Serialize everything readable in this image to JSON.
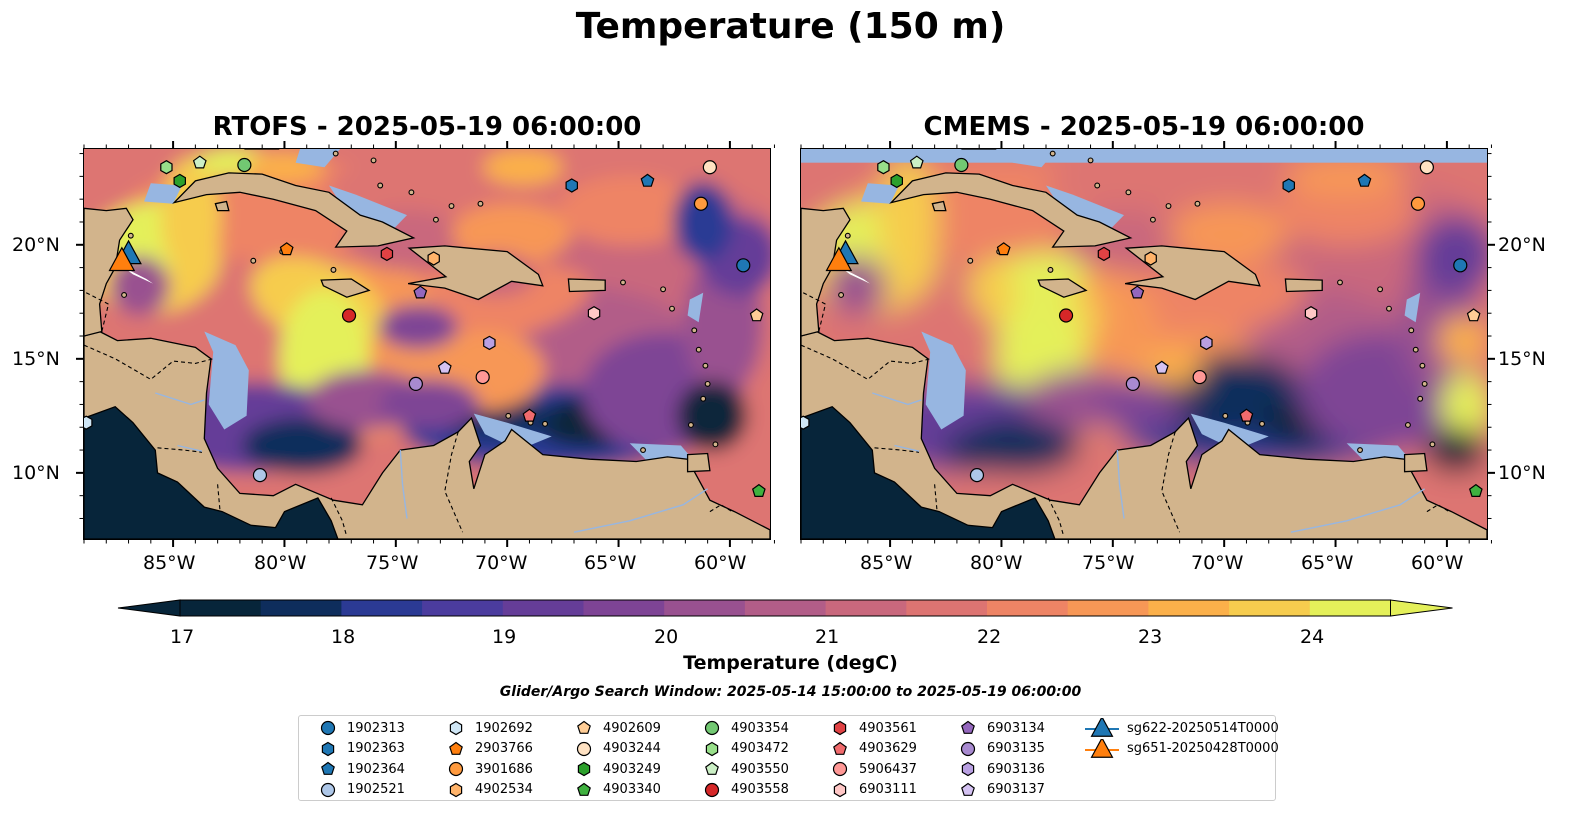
{
  "title": "Temperature (150 m)",
  "panels": [
    {
      "title": "RTOFS - 2025-05-19 06:00:00"
    },
    {
      "title": "CMEMS - 2025-05-19 06:00:00"
    }
  ],
  "axes": {
    "lon_labels": [
      "85°W",
      "80°W",
      "75°W",
      "70°W",
      "65°W",
      "60°W"
    ],
    "lat_labels": [
      "20°N",
      "15°N",
      "10°N"
    ]
  },
  "colorbar": {
    "label": "Temperature (degC)",
    "ticks": [
      "17",
      "18",
      "19",
      "20",
      "21",
      "22",
      "23",
      "24"
    ],
    "colors": [
      "#07253a",
      "#0e2d5c",
      "#2b3a94",
      "#4b3c9e",
      "#653d98",
      "#7e4495",
      "#995190",
      "#b25d88",
      "#c9687d",
      "#dd7472",
      "#ee8465",
      "#f79756",
      "#fbb04a",
      "#f6cc4e",
      "#e4f05a"
    ],
    "land_color": "#d2b48c",
    "below_range_color": "#97b6e1"
  },
  "search_window": "Glider/Argo Search Window: 2025-05-14 15:00:00 to 2025-05-19 06:00:00",
  "legend": {
    "items": [
      {
        "label": "1902313",
        "marker": "circle",
        "color": "#1f77b4"
      },
      {
        "label": "1902363",
        "marker": "hexagon",
        "color": "#1f77b4"
      },
      {
        "label": "1902364",
        "marker": "pentagon",
        "color": "#1f77b4"
      },
      {
        "label": "1902521",
        "marker": "circle",
        "color": "#aec7e8"
      },
      {
        "label": "1902692",
        "marker": "hexagon",
        "color": "#cfe6f5"
      },
      {
        "label": "2903766",
        "marker": "pentagon",
        "color": "#ff7f0e"
      },
      {
        "label": "3901686",
        "marker": "circle",
        "color": "#ff9a3e"
      },
      {
        "label": "4902534",
        "marker": "hexagon",
        "color": "#ffb36a"
      },
      {
        "label": "4902609",
        "marker": "pentagon",
        "color": "#ffcd96"
      },
      {
        "label": "4903244",
        "marker": "circle",
        "color": "#ffe2c3"
      },
      {
        "label": "4903249",
        "marker": "hexagon",
        "color": "#2ca02c"
      },
      {
        "label": "4903340",
        "marker": "pentagon",
        "color": "#3fb13f"
      },
      {
        "label": "4903354",
        "marker": "circle",
        "color": "#72c872"
      },
      {
        "label": "4903472",
        "marker": "hexagon",
        "color": "#98df8a"
      },
      {
        "label": "4903550",
        "marker": "pentagon",
        "color": "#cbefc5"
      },
      {
        "label": "4903558",
        "marker": "circle",
        "color": "#d62728"
      },
      {
        "label": "4903561",
        "marker": "hexagon",
        "color": "#e04244"
      },
      {
        "label": "4903629",
        "marker": "pentagon",
        "color": "#f16b6d"
      },
      {
        "label": "5906437",
        "marker": "circle",
        "color": "#ff9896"
      },
      {
        "label": "6903111",
        "marker": "hexagon",
        "color": "#ffc7c6"
      },
      {
        "label": "6903134",
        "marker": "pentagon",
        "color": "#9467bd"
      },
      {
        "label": "6903135",
        "marker": "circle",
        "color": "#a88ad0"
      },
      {
        "label": "6903136",
        "marker": "hexagon",
        "color": "#b9a0e2"
      },
      {
        "label": "6903137",
        "marker": "pentagon",
        "color": "#d4c2f2"
      },
      {
        "label": "sg622-20250514T0000",
        "marker": "triangle",
        "color": "#1f77b4"
      },
      {
        "label": "sg651-20250428T0000",
        "marker": "triangle",
        "color": "#ff7f0e"
      }
    ]
  },
  "platforms": [
    {
      "id": "1902313",
      "lon": -59.4,
      "lat": 19.1,
      "marker": "circle",
      "color": "#1f77b4"
    },
    {
      "id": "1902363",
      "lon": -67.1,
      "lat": 22.6,
      "marker": "hexagon",
      "color": "#1f77b4"
    },
    {
      "id": "1902364",
      "lon": -63.7,
      "lat": 22.8,
      "marker": "pentagon",
      "color": "#1f77b4"
    },
    {
      "id": "1902521",
      "lon": -81.1,
      "lat": 9.9,
      "marker": "circle",
      "color": "#aec7e8"
    },
    {
      "id": "1902692",
      "lon": -88.9,
      "lat": 12.2,
      "marker": "hexagon",
      "color": "#cfe6f5"
    },
    {
      "id": "2903766",
      "lon": -79.9,
      "lat": 19.8,
      "marker": "pentagon",
      "color": "#ff7f0e"
    },
    {
      "id": "3901686",
      "lon": -61.3,
      "lat": 21.8,
      "marker": "circle",
      "color": "#ff9a3e"
    },
    {
      "id": "4902534",
      "lon": -73.3,
      "lat": 19.4,
      "marker": "hexagon",
      "color": "#ffb36a"
    },
    {
      "id": "4902609",
      "lon": -58.8,
      "lat": 16.9,
      "marker": "pentagon",
      "color": "#ffcd96"
    },
    {
      "id": "4903244",
      "lon": -60.9,
      "lat": 23.4,
      "marker": "circle",
      "color": "#ffe2c3"
    },
    {
      "id": "4903249",
      "lon": -84.7,
      "lat": 22.8,
      "marker": "hexagon",
      "color": "#2ca02c"
    },
    {
      "id": "4903340",
      "lon": -58.7,
      "lat": 9.2,
      "marker": "pentagon",
      "color": "#3fb13f"
    },
    {
      "id": "4903354",
      "lon": -81.8,
      "lat": 23.5,
      "marker": "circle",
      "color": "#72c872"
    },
    {
      "id": "4903472",
      "lon": -85.3,
      "lat": 23.4,
      "marker": "hexagon",
      "color": "#98df8a"
    },
    {
      "id": "4903550",
      "lon": -83.8,
      "lat": 23.6,
      "marker": "pentagon",
      "color": "#cbefc5"
    },
    {
      "id": "4903558",
      "lon": -77.1,
      "lat": 16.9,
      "marker": "circle",
      "color": "#d62728"
    },
    {
      "id": "4903561",
      "lon": -75.4,
      "lat": 19.6,
      "marker": "hexagon",
      "color": "#e04244"
    },
    {
      "id": "4903629",
      "lon": -69.0,
      "lat": 12.5,
      "marker": "pentagon",
      "color": "#f16b6d"
    },
    {
      "id": "5906437",
      "lon": -71.1,
      "lat": 14.2,
      "marker": "circle",
      "color": "#ff9896"
    },
    {
      "id": "6903111",
      "lon": -66.1,
      "lat": 17.0,
      "marker": "hexagon",
      "color": "#ffc7c6"
    },
    {
      "id": "6903134",
      "lon": -73.9,
      "lat": 17.9,
      "marker": "pentagon",
      "color": "#9467bd"
    },
    {
      "id": "6903135",
      "lon": -74.1,
      "lat": 13.9,
      "marker": "circle",
      "color": "#a88ad0"
    },
    {
      "id": "6903136",
      "lon": -70.8,
      "lat": 15.7,
      "marker": "hexagon",
      "color": "#b9a0e2"
    },
    {
      "id": "6903137",
      "lon": -72.8,
      "lat": 14.6,
      "marker": "pentagon",
      "color": "#d4c2f2"
    }
  ],
  "gliders": [
    {
      "id": "sg622-20250514T0000",
      "lon": -87.0,
      "lat": 19.6,
      "color": "#1f77b4"
    },
    {
      "id": "sg651-20250428T0000",
      "lon": -87.3,
      "lat": 19.3,
      "color": "#ff7f0e"
    }
  ]
}
